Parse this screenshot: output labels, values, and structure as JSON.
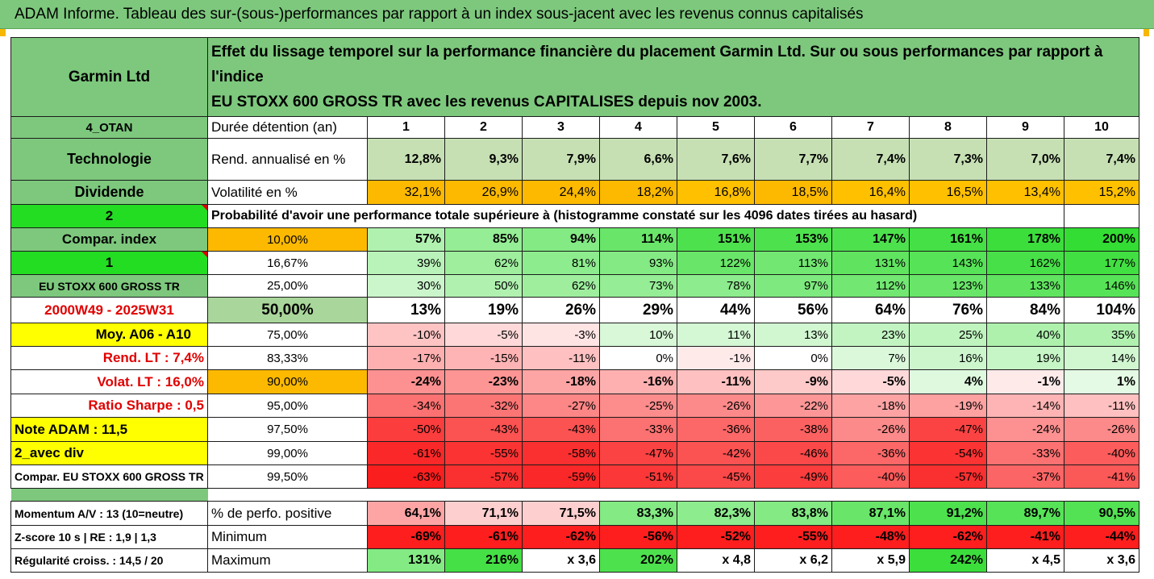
{
  "report_title": "ADAM Informe. Tableau des sur-(sous-)performances par rapport à un index sous-jacent avec les revenus connus capitalisés",
  "colors": {
    "header_green": "#7dc87d",
    "light_green": "#c6e0b4",
    "lime": "#22dd22",
    "orange": "#fcb900",
    "yellow": "#ffff00",
    "strong_red": "#ff1e1e",
    "strong_green": "#33dd33"
  },
  "header": {
    "company": "Garmin Ltd",
    "description_line1": "Effet du lissage temporel sur la performance financière du placement Garmin Ltd. Sur ou sous performances par rapport à l'indice",
    "description_line2": "EU STOXX 600 GROSS TR avec les revenus CAPITALISES depuis nov 2003."
  },
  "side_labels": {
    "category_code": "4_OTAN",
    "sector": "Technologie",
    "dividend": "Dividende",
    "value_2": "2",
    "compar_index": "Compar. index",
    "value_1": "1",
    "index_name": "EU STOXX 600 GROSS TR",
    "period": "2000W49 - 2025W31",
    "moy": "Moy. A06 - A10",
    "rend_lt": "Rend. LT :   7,4%",
    "volat_lt": "Volat. LT :   16,0%",
    "sharpe": "Ratio Sharpe :   0,5",
    "note": "Note ADAM : 11,5",
    "avec_div": "2_avec div",
    "compar_full": "Compar. EU STOXX 600 GROSS TR",
    "momentum": "Momentum A/V : 13 (10=neutre)",
    "zscore": "Z-score 10 s  |  RE : 1,9  |  1,3",
    "regularite": "Régularité croiss. : 14,5 / 20"
  },
  "row_labels": {
    "duree": "Durée détention (an)",
    "rend": "Rend. annualisé en %",
    "volat": "Volatilité en %",
    "proba": "Probabilité d'avoir une performance totale supérieure à (histogramme constaté sur les 4096 dates tirées au hasard)",
    "pct_pos": "% de perfo. positive",
    "minimum": "Minimum",
    "maximum": "Maximum"
  },
  "years": [
    "1",
    "2",
    "3",
    "4",
    "5",
    "6",
    "7",
    "8",
    "9",
    "10"
  ],
  "rend": [
    "12,8%",
    "9,3%",
    "7,9%",
    "6,6%",
    "7,6%",
    "7,7%",
    "7,4%",
    "7,3%",
    "7,0%",
    "7,4%"
  ],
  "volat": [
    "32,1%",
    "26,9%",
    "24,4%",
    "18,2%",
    "16,8%",
    "18,5%",
    "16,4%",
    "16,5%",
    "13,4%",
    "15,2%"
  ],
  "volat_highlight": [
    true,
    true,
    true,
    true,
    false,
    true,
    false,
    false,
    false,
    false
  ],
  "prob_rows": [
    {
      "threshold": "10,00%",
      "values": [
        "57%",
        "85%",
        "94%",
        "114%",
        "151%",
        "153%",
        "147%",
        "161%",
        "178%",
        "200%"
      ],
      "shade": [
        0.3,
        0.45,
        0.55,
        0.7,
        0.85,
        0.85,
        0.85,
        0.9,
        0.95,
        1.0
      ]
    },
    {
      "threshold": "16,67%",
      "values": [
        "39%",
        "62%",
        "81%",
        "93%",
        "122%",
        "113%",
        "131%",
        "143%",
        "162%",
        "177%"
      ],
      "shade": [
        0.25,
        0.4,
        0.5,
        0.55,
        0.7,
        0.65,
        0.75,
        0.8,
        0.88,
        0.92
      ]
    },
    {
      "threshold": "25,00%",
      "values": [
        "30%",
        "50%",
        "62%",
        "73%",
        "78%",
        "97%",
        "112%",
        "123%",
        "133%",
        "146%"
      ],
      "shade": [
        0.15,
        0.3,
        0.4,
        0.45,
        0.5,
        0.58,
        0.65,
        0.7,
        0.75,
        0.8
      ]
    },
    {
      "threshold": "50,00%",
      "values": [
        "13%",
        "19%",
        "26%",
        "29%",
        "44%",
        "56%",
        "64%",
        "76%",
        "84%",
        "104%"
      ],
      "shade": [
        0.0,
        0.0,
        0.0,
        0.0,
        0.0,
        0.0,
        0.0,
        0.0,
        0.0,
        0.0
      ]
    },
    {
      "threshold": "75,00%",
      "values": [
        "-10%",
        "-5%",
        "-3%",
        "10%",
        "11%",
        "13%",
        "23%",
        "25%",
        "40%",
        "35%"
      ],
      "shade": [
        -0.2,
        -0.1,
        -0.05,
        0.08,
        0.1,
        0.12,
        0.2,
        0.22,
        0.32,
        0.3
      ]
    },
    {
      "threshold": "83,33%",
      "values": [
        "-17%",
        "-15%",
        "-11%",
        "0%",
        "-1%",
        "0%",
        "7%",
        "16%",
        "19%",
        "14%"
      ],
      "shade": [
        -0.3,
        -0.28,
        -0.22,
        0.0,
        -0.02,
        0.0,
        0.06,
        0.14,
        0.18,
        0.12
      ]
    },
    {
      "threshold": "90,00%",
      "values": [
        "-24%",
        "-23%",
        "-18%",
        "-16%",
        "-11%",
        "-9%",
        "-5%",
        "4%",
        "-1%",
        "1%"
      ],
      "shade": [
        -0.45,
        -0.43,
        -0.35,
        -0.3,
        -0.22,
        -0.18,
        -0.1,
        0.04,
        -0.02,
        0.01
      ]
    },
    {
      "threshold": "95,00%",
      "values": [
        "-34%",
        "-32%",
        "-27%",
        "-25%",
        "-26%",
        "-22%",
        "-18%",
        "-19%",
        "-14%",
        "-11%"
      ],
      "shade": [
        -0.6,
        -0.58,
        -0.5,
        -0.47,
        -0.48,
        -0.42,
        -0.36,
        -0.37,
        -0.28,
        -0.22
      ]
    },
    {
      "threshold": "97,50%",
      "values": [
        "-50%",
        "-43%",
        "-43%",
        "-33%",
        "-36%",
        "-38%",
        "-26%",
        "-47%",
        "-24%",
        "-26%"
      ],
      "shade": [
        -0.85,
        -0.75,
        -0.75,
        -0.6,
        -0.65,
        -0.68,
        -0.48,
        -0.82,
        -0.45,
        -0.48
      ]
    },
    {
      "threshold": "99,00%",
      "values": [
        "-61%",
        "-55%",
        "-58%",
        "-47%",
        "-42%",
        "-46%",
        "-36%",
        "-54%",
        "-33%",
        "-40%"
      ],
      "shade": [
        -0.95,
        -0.9,
        -0.92,
        -0.82,
        -0.75,
        -0.8,
        -0.65,
        -0.9,
        -0.6,
        -0.7
      ]
    },
    {
      "threshold": "99,50%",
      "values": [
        "-63%",
        "-57%",
        "-59%",
        "-51%",
        "-45%",
        "-49%",
        "-40%",
        "-57%",
        "-37%",
        "-41%"
      ],
      "shade": [
        -1.0,
        -0.92,
        -0.95,
        -0.88,
        -0.8,
        -0.85,
        -0.7,
        -0.92,
        -0.66,
        -0.72
      ]
    }
  ],
  "pct_pos": [
    "64,1%",
    "71,1%",
    "71,5%",
    "83,3%",
    "82,3%",
    "83,8%",
    "87,1%",
    "91,2%",
    "89,7%",
    "90,5%"
  ],
  "pct_pos_shade": [
    -0.35,
    -0.15,
    -0.15,
    0.55,
    0.5,
    0.55,
    0.7,
    0.85,
    0.8,
    0.82
  ],
  "minimum": [
    "-69%",
    "-61%",
    "-62%",
    "-56%",
    "-52%",
    "-55%",
    "-48%",
    "-62%",
    "-41%",
    "-44%"
  ],
  "maximum": [
    "131%",
    "216%",
    "x 3,6",
    "202%",
    "x 4,8",
    "x 6,2",
    "x 5,9",
    "242%",
    "x 4,5",
    "x 3,6"
  ],
  "maximum_shade": [
    0.55,
    0.9,
    0,
    0.85,
    0,
    0,
    0,
    0.95,
    0,
    0
  ]
}
